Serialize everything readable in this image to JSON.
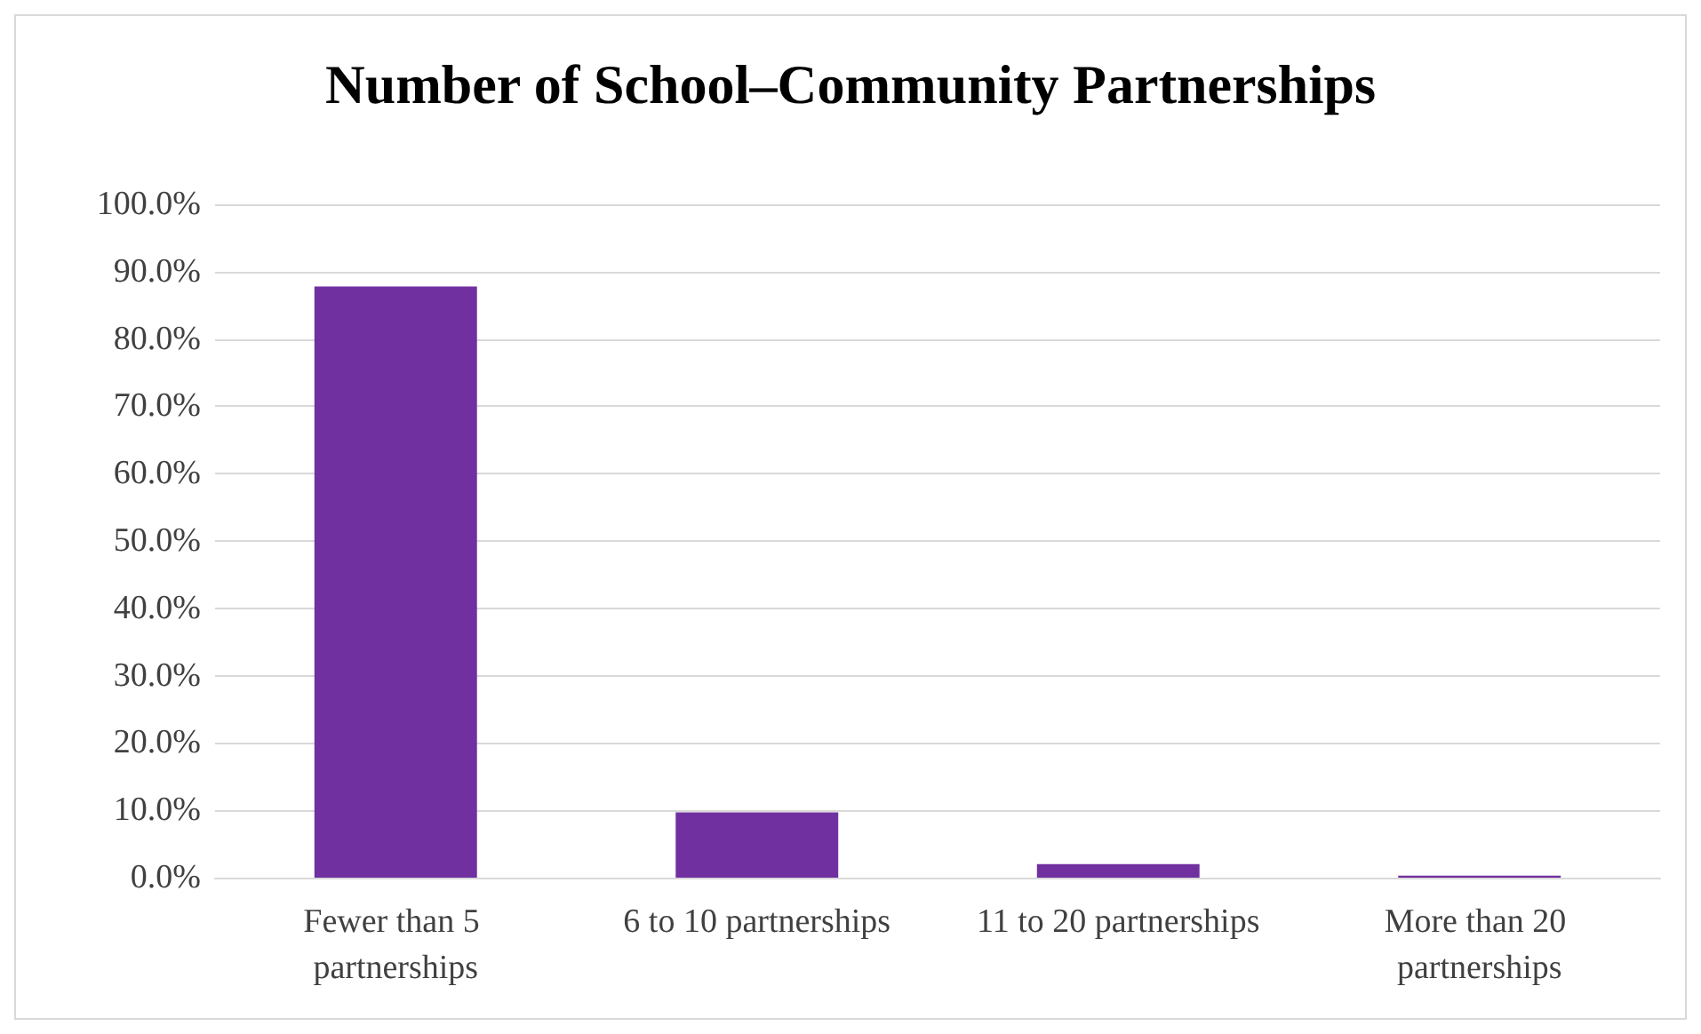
{
  "chart_data": {
    "type": "bar",
    "title": "Number of School–Community Partnerships",
    "categories": [
      "Fewer than 5 partnerships",
      "6 to 10 partnerships",
      "11 to 20 partnerships",
      "More than 20 partnerships"
    ],
    "values": [
      87.8,
      9.7,
      2.0,
      0.3
    ],
    "color": "#7030a0",
    "ylim": [
      0,
      100
    ],
    "yticks": [
      {
        "value": 0,
        "label": "0.0%"
      },
      {
        "value": 10,
        "label": "10.0%"
      },
      {
        "value": 20,
        "label": "20.0%"
      },
      {
        "value": 30,
        "label": "30.0%"
      },
      {
        "value": 40,
        "label": "40.0%"
      },
      {
        "value": 50,
        "label": "50.0%"
      },
      {
        "value": 60,
        "label": "60.0%"
      },
      {
        "value": 70,
        "label": "70.0%"
      },
      {
        "value": 80,
        "label": "80.0%"
      },
      {
        "value": 90,
        "label": "90.0%"
      },
      {
        "value": 100,
        "label": "100.0%"
      }
    ],
    "grid": "y"
  }
}
